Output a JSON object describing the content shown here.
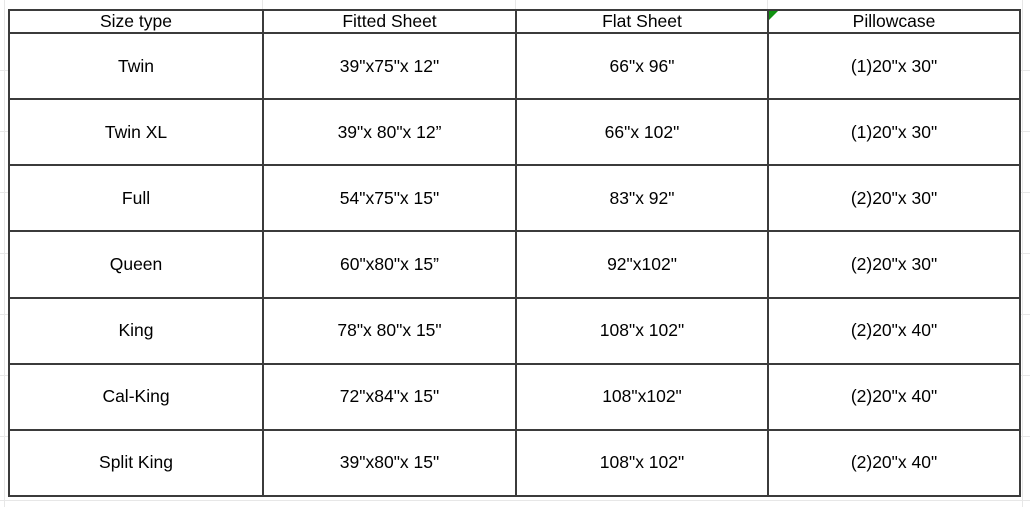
{
  "table": {
    "headers": [
      "Size type",
      "Fitted Sheet",
      "Flat Sheet",
      "Pillowcase"
    ],
    "rows": [
      [
        "Twin",
        "39\"x75\"x 12\"",
        "66\"x 96\"",
        "(1)20\"x 30\""
      ],
      [
        "Twin XL",
        "39\"x 80\"x 12”",
        "66\"x 102\"",
        "(1)20\"x 30\""
      ],
      [
        "Full",
        "54\"x75\"x 15\"",
        "83\"x 92\"",
        "(2)20\"x 30\""
      ],
      [
        "Queen",
        "60\"x80\"x 15”",
        "92\"x102\"",
        "(2)20\"x 30\""
      ],
      [
        "King",
        "78\"x 80\"x 15\"",
        "108\"x 102\"",
        "(2)20\"x 40\""
      ],
      [
        "Cal-King",
        "72\"x84\"x 15\"",
        "108\"x102\"",
        "(2)20\"x 40\""
      ],
      [
        "Split King",
        "39\"x80\"x 15\"",
        "108\"x 102\"",
        "(2)20\"x 40\""
      ]
    ]
  },
  "indicator": {
    "name": "cell-flag-triangle",
    "color": "#119211",
    "attached_to": "Pillowcase header cell"
  },
  "colors": {
    "table_border": "#3b3b3b",
    "gridline": "#e7e7e7",
    "text": "#000000",
    "background": "#ffffff"
  }
}
